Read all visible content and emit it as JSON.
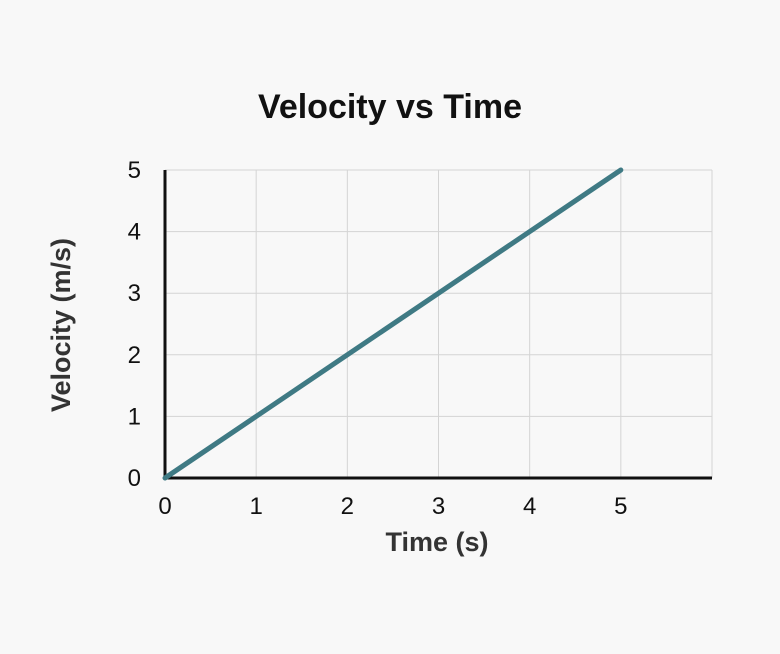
{
  "chart_data": {
    "type": "line",
    "title": "Velocity vs Time",
    "xlabel": "Time (s)",
    "ylabel": "Velocity (m/s)",
    "x_ticks": [
      "0",
      "1",
      "2",
      "3",
      "4",
      "5"
    ],
    "y_ticks": [
      "0",
      "1",
      "2",
      "3",
      "4",
      "5"
    ],
    "xlim": [
      0,
      6
    ],
    "ylim": [
      0,
      5
    ],
    "grid": true,
    "series": [
      {
        "x": [
          0,
          5
        ],
        "y": [
          0,
          5
        ],
        "color": "#3f7a84"
      }
    ]
  }
}
